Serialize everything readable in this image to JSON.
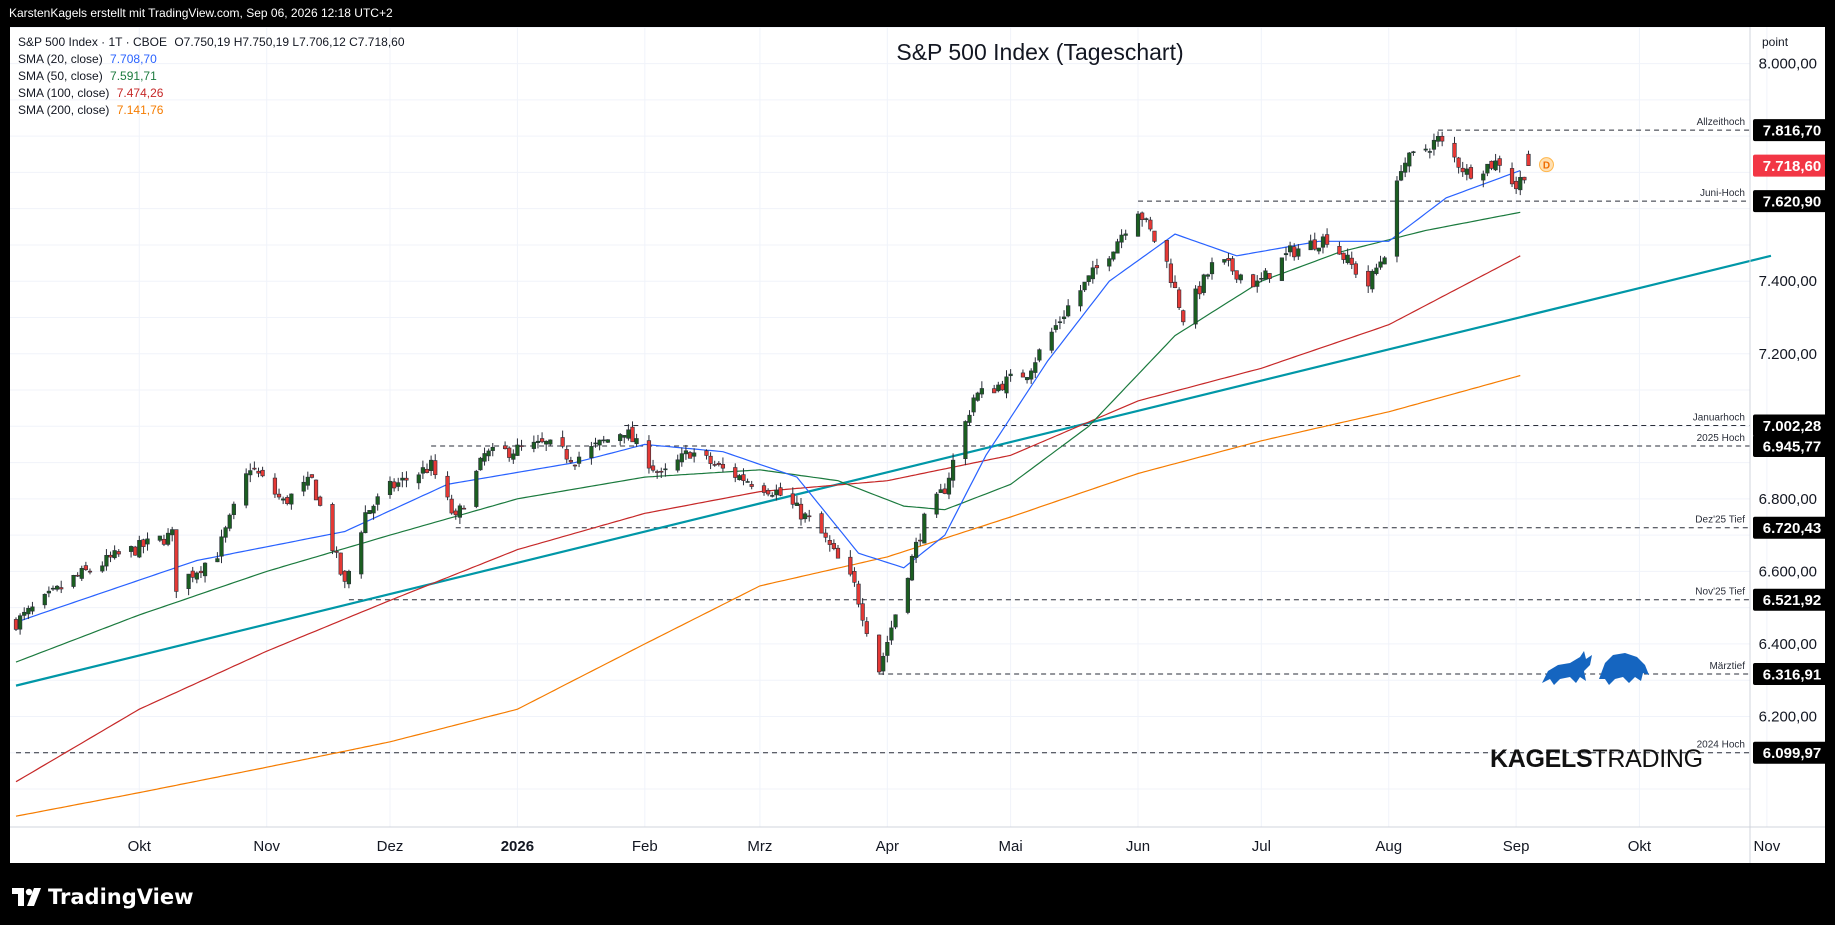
{
  "header": {
    "attribution": "KarstenKagels erstellt mit TradingView.com, Sep 06, 2026 12:18 UTC+2"
  },
  "footer": {
    "logo_text": "TradingView"
  },
  "brand": {
    "bold": "KAGELS",
    "light": "TRADING"
  },
  "legend": {
    "symbol": "S&P 500 Index · 1T · CBOE",
    "ohlc": "O7.750,19  H7.750,19  L7.706,12  C7.718,60",
    "sma": [
      {
        "label": "SMA (20, close)",
        "value": "7.708,70",
        "color": "#2962ff"
      },
      {
        "label": "SMA (50, close)",
        "value": "7.591,71",
        "color": "#1b7a3e"
      },
      {
        "label": "SMA (100, close)",
        "value": "7.474,26",
        "color": "#c62828"
      },
      {
        "label": "SMA (200, close)",
        "value": "7.141,76",
        "color": "#f57c00"
      }
    ]
  },
  "price_axis": {
    "unit": "point",
    "current_price_label": "7.718,60",
    "current_price_color": "#f23645"
  },
  "chart_data": {
    "type": "candlestick",
    "title": "S&P 500 Index (Tageschart)",
    "ylim": [
      6000,
      8200
    ],
    "y_ticks": [
      {
        "value": 6200,
        "label": "6.200,00"
      },
      {
        "value": 6400,
        "label": "6.400,00"
      },
      {
        "value": 6600,
        "label": "6.600,00"
      },
      {
        "value": 6800,
        "label": "6.800,00"
      },
      {
        "value": 7200,
        "label": "7.200,00"
      },
      {
        "value": 7400,
        "label": "7.400,00"
      },
      {
        "value": 8000,
        "label": "8.000,00"
      }
    ],
    "x_ticks": [
      {
        "label": "Okt",
        "date": "2025-10-01",
        "bold": false
      },
      {
        "label": "Nov",
        "date": "2025-11-01",
        "bold": false
      },
      {
        "label": "Dez",
        "date": "2025-12-01",
        "bold": false
      },
      {
        "label": "2026",
        "date": "2026-01-01",
        "bold": true
      },
      {
        "label": "Feb",
        "date": "2026-02-01",
        "bold": false
      },
      {
        "label": "Mrz",
        "date": "2026-03-01",
        "bold": false
      },
      {
        "label": "Apr",
        "date": "2026-04-01",
        "bold": false
      },
      {
        "label": "Mai",
        "date": "2026-05-01",
        "bold": false
      },
      {
        "label": "Jun",
        "date": "2026-06-01",
        "bold": false
      },
      {
        "label": "Jul",
        "date": "2026-07-01",
        "bold": false
      },
      {
        "label": "Aug",
        "date": "2026-08-01",
        "bold": false
      },
      {
        "label": "Sep",
        "date": "2026-09-01",
        "bold": false
      },
      {
        "label": "Okt",
        "date": "2026-10-01",
        "bold": false
      },
      {
        "label": "Nov",
        "date": "2026-11-01",
        "bold": false
      }
    ],
    "levels": [
      {
        "name": "Allzeithoch",
        "value": 7816.7,
        "label": "7.816,70",
        "from_date": "2026-08-13"
      },
      {
        "name": "Juni-Hoch",
        "value": 7620.9,
        "label": "7.620,90",
        "from_date": "2026-06-01"
      },
      {
        "name": "Januarhoch",
        "value": 7002.28,
        "label": "7.002,28",
        "from_date": "2026-01-27"
      },
      {
        "name": "2025 Hoch",
        "value": 6945.77,
        "label": "6.945,77",
        "from_date": "2025-12-11"
      },
      {
        "name": "Dez'25 Tief",
        "value": 6720.43,
        "label": "6.720,43",
        "from_date": "2025-12-17"
      },
      {
        "name": "Nov'25 Tief",
        "value": 6521.92,
        "label": "6.521,92",
        "from_date": "2025-11-21"
      },
      {
        "name": "Märztief",
        "value": 6316.91,
        "label": "6.316,91",
        "from_date": "2026-03-30"
      },
      {
        "name": "2024 Hoch",
        "value": 6099.97,
        "label": "6.099,97",
        "from_date": "2025-09-01"
      }
    ],
    "trendline": {
      "color": "#0097a7",
      "start": {
        "date": "2025-09-01",
        "value": 6285
      },
      "end": {
        "date": "2026-11-02",
        "value": 7470
      }
    },
    "sma_anchors": {
      "sma20": [
        [
          "2025-09-01",
          6460
        ],
        [
          "2025-10-15",
          6630
        ],
        [
          "2025-11-20",
          6710
        ],
        [
          "2025-12-15",
          6840
        ],
        [
          "2026-01-15",
          6900
        ],
        [
          "2026-02-01",
          6950
        ],
        [
          "2026-02-20",
          6930
        ],
        [
          "2026-03-10",
          6860
        ],
        [
          "2026-03-25",
          6650
        ],
        [
          "2026-04-05",
          6610
        ],
        [
          "2026-04-15",
          6700
        ],
        [
          "2026-04-25",
          6920
        ],
        [
          "2026-05-10",
          7180
        ],
        [
          "2026-05-25",
          7400
        ],
        [
          "2026-06-10",
          7530
        ],
        [
          "2026-06-25",
          7470
        ],
        [
          "2026-07-15",
          7510
        ],
        [
          "2026-08-01",
          7510
        ],
        [
          "2026-08-15",
          7630
        ],
        [
          "2026-09-02",
          7705
        ]
      ],
      "sma50": [
        [
          "2025-09-01",
          6350
        ],
        [
          "2025-10-01",
          6480
        ],
        [
          "2025-11-01",
          6600
        ],
        [
          "2025-12-01",
          6700
        ],
        [
          "2026-01-01",
          6800
        ],
        [
          "2026-02-01",
          6860
        ],
        [
          "2026-03-01",
          6880
        ],
        [
          "2026-03-20",
          6850
        ],
        [
          "2026-04-05",
          6780
        ],
        [
          "2026-04-15",
          6770
        ],
        [
          "2026-05-01",
          6840
        ],
        [
          "2026-05-20",
          7000
        ],
        [
          "2026-06-10",
          7250
        ],
        [
          "2026-07-01",
          7400
        ],
        [
          "2026-07-20",
          7480
        ],
        [
          "2026-08-10",
          7540
        ],
        [
          "2026-09-02",
          7590
        ]
      ],
      "sma100": [
        [
          "2025-09-01",
          6020
        ],
        [
          "2025-10-01",
          6220
        ],
        [
          "2025-11-01",
          6380
        ],
        [
          "2025-12-01",
          6520
        ],
        [
          "2026-01-01",
          6660
        ],
        [
          "2026-02-01",
          6760
        ],
        [
          "2026-03-01",
          6820
        ],
        [
          "2026-04-01",
          6850
        ],
        [
          "2026-05-01",
          6920
        ],
        [
          "2026-06-01",
          7070
        ],
        [
          "2026-07-01",
          7160
        ],
        [
          "2026-08-01",
          7280
        ],
        [
          "2026-09-02",
          7470
        ]
      ],
      "sma200": [
        [
          "2025-09-01",
          5925
        ],
        [
          "2025-10-01",
          5990
        ],
        [
          "2025-11-01",
          6060
        ],
        [
          "2025-12-01",
          6130
        ],
        [
          "2026-01-01",
          6220
        ],
        [
          "2026-02-01",
          6400
        ],
        [
          "2026-03-01",
          6560
        ],
        [
          "2026-04-01",
          6640
        ],
        [
          "2026-05-01",
          6750
        ],
        [
          "2026-06-01",
          6870
        ],
        [
          "2026-07-01",
          6960
        ],
        [
          "2026-08-01",
          7040
        ],
        [
          "2026-09-02",
          7140
        ]
      ]
    },
    "price_anchors": [
      [
        "2025-09-01",
        6460
      ],
      [
        "2025-09-15",
        6580
      ],
      [
        "2025-09-25",
        6640
      ],
      [
        "2025-10-09",
        6700
      ],
      [
        "2025-10-10",
        6560
      ],
      [
        "2025-10-20",
        6650
      ],
      [
        "2025-10-28",
        6890
      ],
      [
        "2025-11-05",
        6790
      ],
      [
        "2025-11-12",
        6850
      ],
      [
        "2025-11-20",
        6560
      ],
      [
        "2025-11-25",
        6760
      ],
      [
        "2025-12-01",
        6830
      ],
      [
        "2025-12-11",
        6890
      ],
      [
        "2025-12-17",
        6740
      ],
      [
        "2025-12-24",
        6920
      ],
      [
        "2026-01-08",
        6950
      ],
      [
        "2026-01-15",
        6910
      ],
      [
        "2026-01-27",
        6990
      ],
      [
        "2026-02-05",
        6860
      ],
      [
        "2026-02-12",
        6930
      ],
      [
        "2026-02-20",
        6880
      ],
      [
        "2026-03-05",
        6820
      ],
      [
        "2026-03-15",
        6720
      ],
      [
        "2026-03-24",
        6560
      ],
      [
        "2026-03-30",
        6330
      ],
      [
        "2026-04-06",
        6600
      ],
      [
        "2026-04-10",
        6740
      ],
      [
        "2026-04-15",
        6830
      ],
      [
        "2026-04-22",
        7080
      ],
      [
        "2026-05-05",
        7150
      ],
      [
        "2026-05-15",
        7330
      ],
      [
        "2026-05-25",
        7480
      ],
      [
        "2026-06-01",
        7600
      ],
      [
        "2026-06-08",
        7450
      ],
      [
        "2026-06-12",
        7300
      ],
      [
        "2026-06-20",
        7460
      ],
      [
        "2026-06-30",
        7390
      ],
      [
        "2026-07-08",
        7480
      ],
      [
        "2026-07-17",
        7520
      ],
      [
        "2026-07-27",
        7390
      ],
      [
        "2026-07-31",
        7480
      ],
      [
        "2026-08-04",
        7720
      ],
      [
        "2026-08-13",
        7790
      ],
      [
        "2026-08-20",
        7700
      ],
      [
        "2026-08-28",
        7730
      ],
      [
        "2026-09-01",
        7660
      ],
      [
        "2026-09-04",
        7718.6
      ]
    ]
  }
}
